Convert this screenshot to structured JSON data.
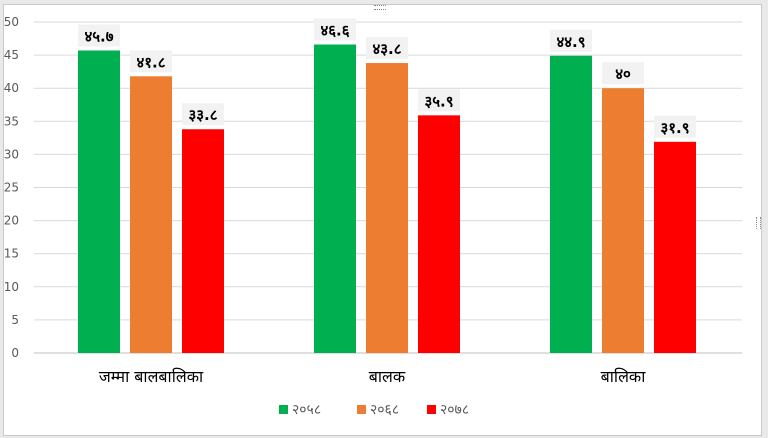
{
  "chart_data": {
    "type": "bar",
    "categories": [
      "जम्मा बालबालिका",
      "बालक",
      "बालिका"
    ],
    "series": [
      {
        "name": "२०५८",
        "color": "#00b050",
        "values": [
          45.7,
          46.6,
          44.9
        ],
        "labels": [
          "४५.७",
          "४६.६",
          "४४.९"
        ]
      },
      {
        "name": "२०६८",
        "color": "#ed7d31",
        "values": [
          41.8,
          43.8,
          40
        ],
        "labels": [
          "४१.८",
          "४३.८",
          "४०"
        ]
      },
      {
        "name": "२०७८",
        "color": "#ff0000",
        "values": [
          33.8,
          35.9,
          31.9
        ],
        "labels": [
          "३३.८",
          "३५.९",
          "३१.९"
        ]
      }
    ],
    "yticks": [
      "0",
      "5",
      "10",
      "15",
      "20",
      "25",
      "30",
      "35",
      "40",
      "45",
      "50"
    ],
    "ylim": [
      0,
      50
    ],
    "grid": true,
    "legend": "bottom"
  }
}
